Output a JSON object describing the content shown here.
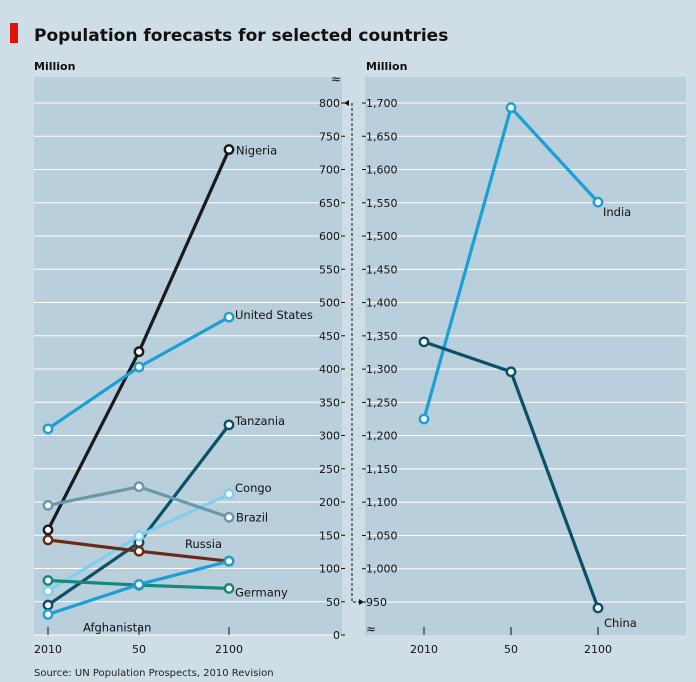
{
  "header": {
    "title": "Population forecasts for selected countries",
    "source": "Source: UN Population Prospects, 2010 Revision"
  },
  "colors": {
    "accent": "#e3120b",
    "panel": "#b9cfdb",
    "background": "#cfdde6",
    "nigeria": "#1a1a1a",
    "united_states": "#1a9fd6",
    "tanzania": "#0b5069",
    "congo": "#7fd0f0",
    "brazil": "#6a98ab",
    "russia": "#6b2a14",
    "germany": "#138a7c",
    "afghanistan": "#1a9fd6",
    "india": "#1a9fd6",
    "china": "#0b5069"
  },
  "chart_data": [
    {
      "type": "line",
      "ylabel": "Million",
      "x": [
        "2010",
        "50",
        "2100"
      ],
      "ylim": [
        0,
        800
      ],
      "yticks": [
        "0",
        "50",
        "100",
        "150",
        "200",
        "250",
        "300",
        "350",
        "400",
        "450",
        "500",
        "550",
        "600",
        "650",
        "700",
        "750",
        "800"
      ],
      "axis_break": true,
      "series": [
        {
          "name": "Nigeria",
          "values": [
            158,
            426,
            730
          ]
        },
        {
          "name": "United States",
          "values": [
            310,
            403,
            478
          ]
        },
        {
          "name": "Tanzania",
          "values": [
            45,
            139,
            316
          ]
        },
        {
          "name": "Congo",
          "values": [
            66,
            149,
            212
          ]
        },
        {
          "name": "Brazil",
          "values": [
            195,
            223,
            177
          ]
        },
        {
          "name": "Russia",
          "values": [
            143,
            126,
            111
          ]
        },
        {
          "name": "Germany",
          "values": [
            82,
            75,
            70
          ]
        },
        {
          "name": "Afghanistan",
          "values": [
            31,
            76,
            111
          ]
        }
      ]
    },
    {
      "type": "line",
      "ylabel": "Million",
      "x": [
        "2010",
        "50",
        "2100"
      ],
      "ylim": [
        950,
        1700
      ],
      "yticks": [
        "950",
        "1,000",
        "1,050",
        "1,100",
        "1,150",
        "1,200",
        "1,250",
        "1,300",
        "1,350",
        "1,400",
        "1,450",
        "1,500",
        "1,550",
        "1,600",
        "1,650",
        "1,700"
      ],
      "axis_break": true,
      "series": [
        {
          "name": "India",
          "values": [
            1225,
            1693,
            1551
          ]
        },
        {
          "name": "China",
          "values": [
            1341,
            1296,
            941
          ]
        }
      ]
    }
  ]
}
